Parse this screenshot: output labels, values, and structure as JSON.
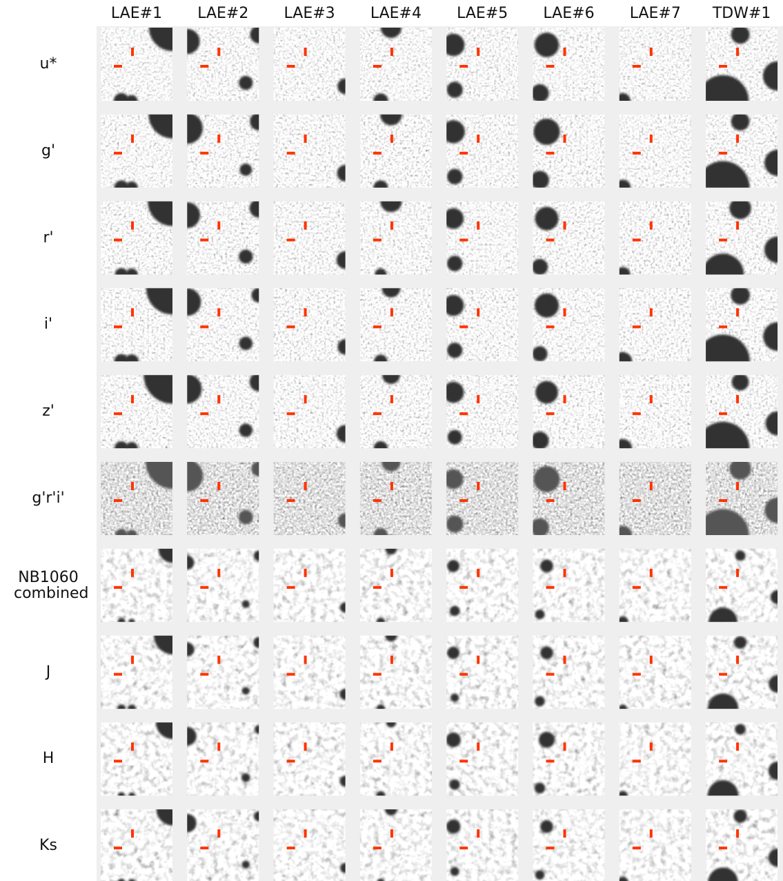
{
  "columns": [
    "LAE#1",
    "LAE#2",
    "LAE#3",
    "LAE#4",
    "LAE#5",
    "LAE#6",
    "LAE#7",
    "TDW#1"
  ],
  "rows": [
    "u*",
    "g'",
    "r'",
    "i'",
    "z'",
    "g'r'i'",
    "NB1060 combined",
    "J",
    "H",
    "Ks"
  ]
}
